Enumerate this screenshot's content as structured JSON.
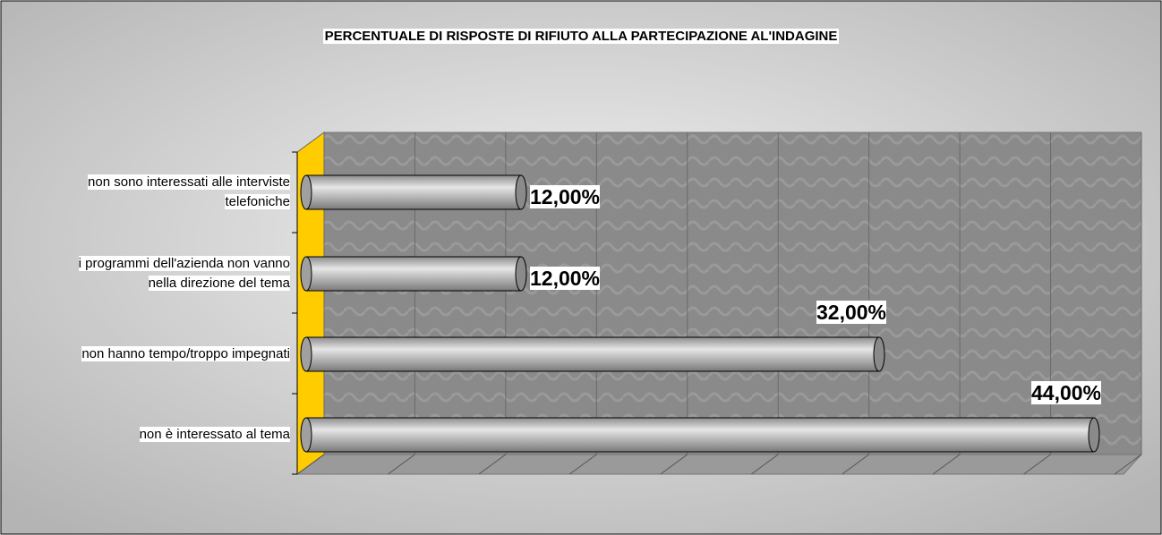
{
  "chart_data": {
    "type": "bar",
    "orientation": "horizontal",
    "title": "PERCENTUALE DI RISPOSTE DI RIFIUTO ALLA PARTECIPAZIONE AL'INDAGINE",
    "categories": [
      "non sono interessati alle interviste telefoniche",
      "i programmi dell'azienda non vanno nella direzione del tema",
      "non hanno tempo/troppo impegnati",
      "non è interessato al tema"
    ],
    "values": [
      12,
      12,
      32,
      44
    ],
    "value_labels": [
      "12,00%",
      "12,00%",
      "32,00%",
      "44,00%"
    ],
    "color": "#b8b8b8",
    "xlim": [
      0,
      45
    ],
    "xticks": [
      0,
      5,
      10,
      15,
      20,
      25,
      30,
      35,
      40,
      45
    ],
    "grid": true
  }
}
